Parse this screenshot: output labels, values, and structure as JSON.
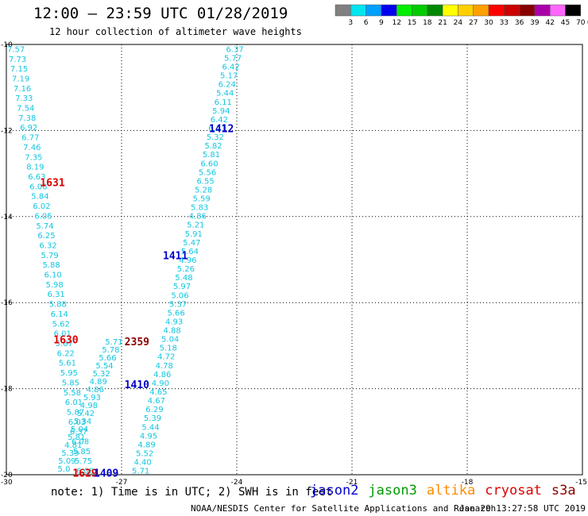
{
  "header": {
    "title": "12:00 – 23:59 UTC 01/28/2019",
    "subtitle": "12 hour collection of altimeter wave heights"
  },
  "footer": {
    "note": "note:  1) Time is in UTC; 2) SWH is in feet",
    "credit": "NOAA/NESDIS Center for Satellite Applications and Research",
    "timestamp": "Jan 29 13:27:58 UTC 2019"
  },
  "satellites": [
    {
      "name": "jason2",
      "color": "#0000cc"
    },
    {
      "name": "jason3",
      "color": "#009900"
    },
    {
      "name": "altika",
      "color": "#ff8c00"
    },
    {
      "name": "cryosat",
      "color": "#dd0000"
    },
    {
      "name": "s3a",
      "color": "#8b0000"
    }
  ],
  "colors": {
    "value_text": "#12c6e0",
    "grid": "#000000",
    "background": "#ffffff"
  },
  "chart_data": {
    "type": "scatter",
    "title": "12:00 – 23:59 UTC 01/28/2019",
    "subtitle": "12 hour collection of altimeter wave heights",
    "xlim": [
      -30,
      -15
    ],
    "ylim": [
      -20,
      -10
    ],
    "x_ticks": [
      -30,
      -27,
      -24,
      -21,
      -18,
      -15
    ],
    "y_ticks": [
      -10,
      -12,
      -14,
      -16,
      -18,
      -20
    ],
    "grid": true,
    "legend": {
      "unit": "(ft)",
      "labels": [
        "3",
        "6",
        "9",
        "12",
        "15",
        "18",
        "21",
        "24",
        "27",
        "30",
        "33",
        "36",
        "39",
        "42",
        "45",
        "70"
      ],
      "colors": [
        "#808080",
        "#00e5ee",
        "#00a0ff",
        "#0000ee",
        "#00ee00",
        "#00cc00",
        "#008800",
        "#ffff00",
        "#ffd000",
        "#ffa000",
        "#ff0000",
        "#cc0000",
        "#880000",
        "#aa00aa",
        "#ff66ff",
        "#000000"
      ]
    },
    "tracks": [
      {
        "name": "west",
        "lon_start": -29.75,
        "lat_start": -10.1,
        "lon_end": -27.95,
        "lat_end": -19.9,
        "values": [
          "7.57",
          "7.73",
          "7.15",
          "7.19",
          "7.16",
          "7.33",
          "7.54",
          "7.38",
          "6.92",
          "6.77",
          "7.46",
          "7.35",
          "8.19",
          "6.63",
          "6.06",
          "5.84",
          "6.02",
          "6.05",
          "5.74",
          "6.25",
          "6.32",
          "5.79",
          "5.88",
          "6.10",
          "5.98",
          "6.31",
          "5.88",
          "6.14",
          "5.62",
          "6.01",
          "5.67",
          "6.22",
          "5.61",
          "5.95",
          "5.85",
          "5.58",
          "6.01",
          "5.87",
          "6.03",
          "6.37",
          "6.08",
          "5.85",
          "5.75",
          "6.08"
        ]
      },
      {
        "name": "east",
        "lon_start": -24.05,
        "lat_start": -10.1,
        "lon_end": -26.5,
        "lat_end": -19.9,
        "values": [
          "6.37",
          "5.77",
          "6.42",
          "5.17",
          "6.24",
          "5.44",
          "6.11",
          "5.94",
          "6.42",
          "6.21",
          "5.32",
          "5.82",
          "5.81",
          "6.60",
          "5.56",
          "6.55",
          "5.28",
          "5.59",
          "5.83",
          "4.86",
          "5.21",
          "5.91",
          "5.47",
          "5.64",
          "4.96",
          "5.26",
          "5.48",
          "5.97",
          "5.06",
          "5.37",
          "5.66",
          "4.93",
          "4.88",
          "5.04",
          "5.18",
          "4.72",
          "4.78",
          "4.86",
          "4.90",
          "4.65",
          "4.67",
          "6.29",
          "5.39",
          "5.44",
          "4.95",
          "4.89",
          "5.52",
          "4.40",
          "5.71"
        ]
      },
      {
        "name": "middle",
        "lon_start": -27.2,
        "lat_start": -16.9,
        "lon_end": -28.5,
        "lat_end": -19.85,
        "values": [
          "5.71",
          "5.78",
          "5.66",
          "5.54",
          "5.32",
          "4.89",
          "4.86",
          "5.93",
          "4.98",
          "5.42",
          "5.34",
          "5.04",
          "5.81",
          "4.81",
          "5.39",
          "5.09",
          "5.0"
        ]
      }
    ],
    "pass_labels": [
      {
        "text": "1631",
        "lon": -28.8,
        "lat": -13.2,
        "color": "#dd0000"
      },
      {
        "text": "1630",
        "lon": -28.45,
        "lat": -16.85,
        "color": "#dd0000"
      },
      {
        "text": "1629",
        "lon": -27.95,
        "lat": -19.95,
        "color": "#dd0000"
      },
      {
        "text": "1412",
        "lon": -24.4,
        "lat": -11.95,
        "color": "#0000cc"
      },
      {
        "text": "1411",
        "lon": -25.6,
        "lat": -14.9,
        "color": "#0000cc"
      },
      {
        "text": "1410",
        "lon": -26.6,
        "lat": -17.9,
        "color": "#0000cc"
      },
      {
        "text": "1409",
        "lon": -27.4,
        "lat": -19.95,
        "color": "#0000cc"
      },
      {
        "text": "2359",
        "lon": -26.6,
        "lat": -16.9,
        "color": "#8b0000"
      }
    ]
  }
}
